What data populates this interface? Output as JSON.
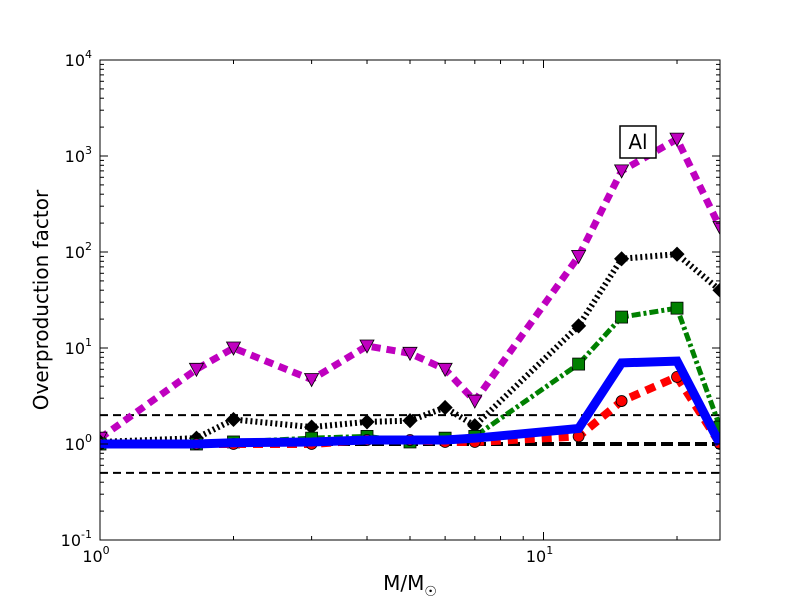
{
  "chart_data": {
    "type": "line",
    "title": "",
    "xlabel": "M/M",
    "xlabel_sub": "☉",
    "ylabel": "Overproduction factor",
    "xscale": "log",
    "yscale": "log",
    "xlim": [
      1,
      25
    ],
    "ylim": [
      0.1,
      10000
    ],
    "grid": false,
    "annotation": "Al",
    "x_ticks": [
      {
        "value": 1,
        "base": "10",
        "exp": "0"
      },
      {
        "value": 10,
        "base": "10",
        "exp": "1"
      }
    ],
    "y_ticks": [
      {
        "value": 0.1,
        "base": "10",
        "exp": "-1"
      },
      {
        "value": 1,
        "base": "10",
        "exp": "0"
      },
      {
        "value": 10,
        "base": "10",
        "exp": "1"
      },
      {
        "value": 100,
        "base": "10",
        "exp": "2"
      },
      {
        "value": 1000,
        "base": "10",
        "exp": "3"
      },
      {
        "value": 10000,
        "base": "10",
        "exp": "4"
      }
    ],
    "reference_lines": [
      {
        "y": 2.0,
        "style": "dashed",
        "color": "#000000",
        "width": 2
      },
      {
        "y": 1.0,
        "style": "dashed",
        "color": "#000000",
        "width": 4
      },
      {
        "y": 0.5,
        "style": "dashed",
        "color": "#000000",
        "width": 2
      }
    ],
    "series": [
      {
        "color": "#bf00bf",
        "marker": "triangle-down",
        "dash": "9,6",
        "width": 7,
        "x": [
          1,
          1.65,
          2,
          3,
          4,
          5,
          6,
          7,
          12,
          15,
          20,
          25
        ],
        "y": [
          1.15,
          6.0,
          10.0,
          4.7,
          10.5,
          8.8,
          6.0,
          2.8,
          90,
          700,
          1500,
          180
        ]
      },
      {
        "color": "#000000",
        "marker": "diamond",
        "dash": "2,3",
        "width": 6,
        "x": [
          1,
          1.65,
          2,
          3,
          4,
          5,
          6,
          7,
          12,
          15,
          20,
          25
        ],
        "y": [
          1.05,
          1.15,
          1.8,
          1.5,
          1.7,
          1.75,
          2.4,
          1.55,
          17,
          85,
          95,
          40
        ]
      },
      {
        "color": "#008000",
        "marker": "square",
        "dash": "9,3,3,3",
        "width": 5,
        "x": [
          1,
          1.65,
          2,
          3,
          4,
          5,
          6,
          7,
          12,
          15,
          20,
          25
        ],
        "y": [
          1.0,
          1.0,
          1.05,
          1.15,
          1.2,
          1.05,
          1.15,
          1.2,
          6.8,
          21,
          26,
          1.5
        ]
      },
      {
        "color": "#ff0000",
        "marker": "circle",
        "dash": "10,7",
        "width": 8,
        "x": [
          1,
          1.65,
          2,
          3,
          4,
          5,
          6,
          7,
          12,
          15,
          20,
          25
        ],
        "y": [
          1.0,
          1.0,
          1.0,
          1.0,
          1.1,
          1.1,
          1.05,
          1.05,
          1.2,
          2.8,
          5.0,
          1.0
        ]
      },
      {
        "color": "#0000ff",
        "marker": "none",
        "dash": "",
        "width": 9,
        "x": [
          1,
          1.65,
          2,
          3,
          4,
          5,
          6,
          7,
          12,
          15,
          20,
          25
        ],
        "y": [
          1.0,
          1.0,
          1.03,
          1.05,
          1.1,
          1.1,
          1.1,
          1.15,
          1.45,
          7.0,
          7.3,
          1.0
        ]
      }
    ]
  }
}
